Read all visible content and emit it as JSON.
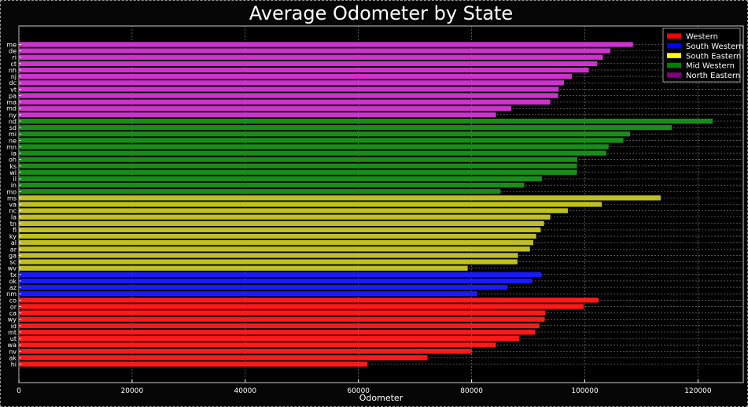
{
  "chart_data": {
    "type": "bar",
    "orientation": "horizontal",
    "title": "Average Odometer by State",
    "xlabel": "Odometer",
    "ylabel": "",
    "xlim": [
      0,
      128000
    ],
    "xticks": [
      0,
      20000,
      40000,
      60000,
      80000,
      100000,
      120000
    ],
    "grid": true,
    "legend_position": "top-right",
    "legend": [
      {
        "name": "Western",
        "color": "#ff0000"
      },
      {
        "name": "South Western",
        "color": "#0000ff"
      },
      {
        "name": "South Eastern",
        "color": "#ffff00"
      },
      {
        "name": "Mid Western",
        "color": "#008000"
      },
      {
        "name": "North Eastern",
        "color": "#800080"
      }
    ],
    "bars": [
      {
        "state": "me",
        "value": 108500,
        "region": "North Eastern",
        "color": "#cc33cc"
      },
      {
        "state": "de",
        "value": 104500,
        "region": "North Eastern",
        "color": "#cc33cc"
      },
      {
        "state": "ri",
        "value": 103200,
        "region": "North Eastern",
        "color": "#cc33cc"
      },
      {
        "state": "ct",
        "value": 102200,
        "region": "North Eastern",
        "color": "#cc33cc"
      },
      {
        "state": "nh",
        "value": 100700,
        "region": "North Eastern",
        "color": "#cc33cc"
      },
      {
        "state": "nj",
        "value": 97700,
        "region": "North Eastern",
        "color": "#cc33cc"
      },
      {
        "state": "dc",
        "value": 96300,
        "region": "North Eastern",
        "color": "#cc33cc"
      },
      {
        "state": "vt",
        "value": 95400,
        "region": "North Eastern",
        "color": "#cc33cc"
      },
      {
        "state": "pa",
        "value": 95300,
        "region": "North Eastern",
        "color": "#cc33cc"
      },
      {
        "state": "ma",
        "value": 93900,
        "region": "North Eastern",
        "color": "#cc33cc"
      },
      {
        "state": "md",
        "value": 87000,
        "region": "North Eastern",
        "color": "#cc33cc"
      },
      {
        "state": "ny",
        "value": 84300,
        "region": "North Eastern",
        "color": "#cc33cc"
      },
      {
        "state": "nd",
        "value": 122600,
        "region": "Mid Western",
        "color": "#1a8c1a"
      },
      {
        "state": "sd",
        "value": 115400,
        "region": "Mid Western",
        "color": "#1a8c1a"
      },
      {
        "state": "mi",
        "value": 108000,
        "region": "Mid Western",
        "color": "#1a8c1a"
      },
      {
        "state": "ne",
        "value": 106800,
        "region": "Mid Western",
        "color": "#1a8c1a"
      },
      {
        "state": "mn",
        "value": 104200,
        "region": "Mid Western",
        "color": "#1a8c1a"
      },
      {
        "state": "ia",
        "value": 103800,
        "region": "Mid Western",
        "color": "#1a8c1a"
      },
      {
        "state": "oh",
        "value": 98700,
        "region": "Mid Western",
        "color": "#1a8c1a"
      },
      {
        "state": "ks",
        "value": 98600,
        "region": "Mid Western",
        "color": "#1a8c1a"
      },
      {
        "state": "wi",
        "value": 98600,
        "region": "Mid Western",
        "color": "#1a8c1a"
      },
      {
        "state": "il",
        "value": 92400,
        "region": "Mid Western",
        "color": "#1a8c1a"
      },
      {
        "state": "in",
        "value": 89300,
        "region": "Mid Western",
        "color": "#1a8c1a"
      },
      {
        "state": "mo",
        "value": 85100,
        "region": "Mid Western",
        "color": "#1a8c1a"
      },
      {
        "state": "ms",
        "value": 113400,
        "region": "South Eastern",
        "color": "#bfbf26"
      },
      {
        "state": "va",
        "value": 103000,
        "region": "South Eastern",
        "color": "#bfbf26"
      },
      {
        "state": "nc",
        "value": 97000,
        "region": "South Eastern",
        "color": "#bfbf26"
      },
      {
        "state": "la",
        "value": 93900,
        "region": "South Eastern",
        "color": "#bfbf26"
      },
      {
        "state": "tn",
        "value": 92800,
        "region": "South Eastern",
        "color": "#bfbf26"
      },
      {
        "state": "fl",
        "value": 92200,
        "region": "South Eastern",
        "color": "#bfbf26"
      },
      {
        "state": "ky",
        "value": 91400,
        "region": "South Eastern",
        "color": "#bfbf26"
      },
      {
        "state": "al",
        "value": 90900,
        "region": "South Eastern",
        "color": "#bfbf26"
      },
      {
        "state": "ar",
        "value": 90300,
        "region": "South Eastern",
        "color": "#bfbf26"
      },
      {
        "state": "ga",
        "value": 88200,
        "region": "South Eastern",
        "color": "#bfbf26"
      },
      {
        "state": "sc",
        "value": 88100,
        "region": "South Eastern",
        "color": "#bfbf26"
      },
      {
        "state": "wv",
        "value": 79300,
        "region": "South Eastern",
        "color": "#bfbf26"
      },
      {
        "state": "tx",
        "value": 92300,
        "region": "South Western",
        "color": "#1a1aff"
      },
      {
        "state": "ok",
        "value": 90700,
        "region": "South Western",
        "color": "#1a1aff"
      },
      {
        "state": "az",
        "value": 86300,
        "region": "South Western",
        "color": "#1a1aff"
      },
      {
        "state": "nm",
        "value": 81000,
        "region": "South Western",
        "color": "#1a1aff"
      },
      {
        "state": "co",
        "value": 102400,
        "region": "Western",
        "color": "#ff1a1a"
      },
      {
        "state": "or",
        "value": 99800,
        "region": "Western",
        "color": "#ff1a1a"
      },
      {
        "state": "ca",
        "value": 93000,
        "region": "Western",
        "color": "#ff1a1a"
      },
      {
        "state": "wy",
        "value": 92900,
        "region": "Western",
        "color": "#ff1a1a"
      },
      {
        "state": "id",
        "value": 92000,
        "region": "Western",
        "color": "#ff1a1a"
      },
      {
        "state": "mt",
        "value": 91200,
        "region": "Western",
        "color": "#ff1a1a"
      },
      {
        "state": "ut",
        "value": 88400,
        "region": "Western",
        "color": "#ff1a1a"
      },
      {
        "state": "wa",
        "value": 84300,
        "region": "Western",
        "color": "#ff1a1a"
      },
      {
        "state": "nv",
        "value": 80000,
        "region": "Western",
        "color": "#ff1a1a"
      },
      {
        "state": "ak",
        "value": 72200,
        "region": "Western",
        "color": "#ff1a1a"
      },
      {
        "state": "hi",
        "value": 61600,
        "region": "Western",
        "color": "#ff1a1a"
      }
    ]
  }
}
